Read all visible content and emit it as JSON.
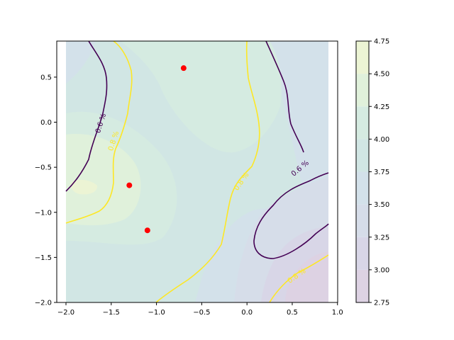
{
  "chart_data": {
    "type": "contour",
    "title": "",
    "xlabel": "",
    "ylabel": "",
    "xlim": [
      -2.0,
      0.9
    ],
    "ylim": [
      -2.0,
      0.9
    ],
    "x_ticks": [
      "−2.0",
      "−1.5",
      "−1.0",
      "−0.5",
      "0.0",
      "0.5",
      "1.0"
    ],
    "x_tick_values": [
      -2.0,
      -1.5,
      -1.0,
      -0.5,
      0.0,
      0.5,
      1.0
    ],
    "y_ticks": [
      "−2.0",
      "−1.5",
      "−1.0",
      "−0.5",
      "0.0",
      "0.5"
    ],
    "y_tick_values": [
      -2.0,
      -1.5,
      -1.0,
      -0.5,
      0.0,
      0.5
    ],
    "colorbar": {
      "levels": [
        2.75,
        3.0,
        3.25,
        3.5,
        3.75,
        4.0,
        4.25,
        4.5,
        4.75
      ],
      "tick_labels": [
        "2.75",
        "3.00",
        "3.25",
        "3.50",
        "3.75",
        "4.00",
        "4.25",
        "4.50",
        "4.75"
      ],
      "colors": [
        "#ddd2e3",
        "#d8d6e7",
        "#d6dde9",
        "#d3e1ea",
        "#d1e6e4",
        "#d5ebe1",
        "#e0f1db",
        "#ecf4d4"
      ]
    },
    "contour_lines": [
      {
        "label": "0.6 %",
        "color": "#440154"
      },
      {
        "label": "0.8 %",
        "color": "#fde725"
      }
    ],
    "points": [
      {
        "x": -0.7,
        "y": 0.6
      },
      {
        "x": -1.3,
        "y": -0.7
      },
      {
        "x": -1.1,
        "y": -1.2
      }
    ],
    "point_color": "#ff0000"
  }
}
